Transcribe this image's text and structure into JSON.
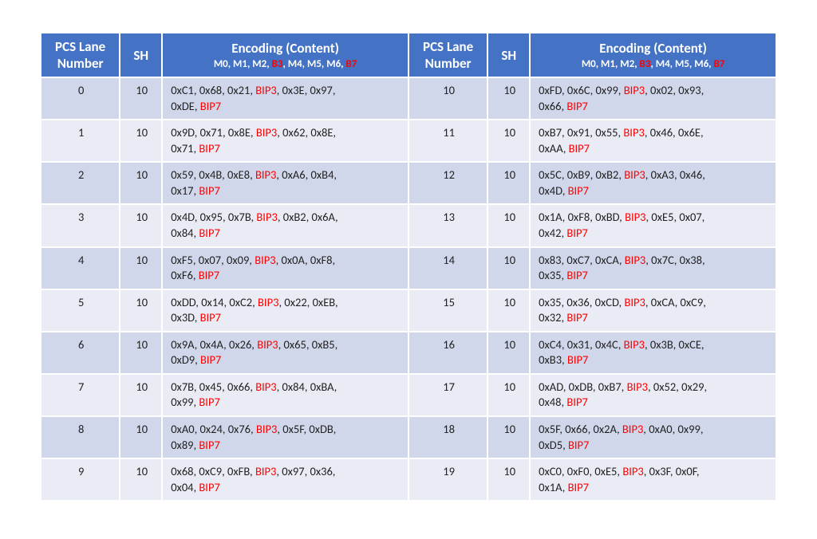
{
  "colors": {
    "header_bg": "#4472c4",
    "header_fg": "#ffffff",
    "row_even_bg": "#d0d7ea",
    "row_odd_bg": "#e9ecf5",
    "accent_red": "#ff0000",
    "border": "#ffffff",
    "text": "#222222"
  },
  "typography": {
    "header_fontsize_pt": 13,
    "subheader_fontsize_pt": 10,
    "cell_fontsize_pt": 11,
    "font_family": "Calibri"
  },
  "headers": {
    "lane": "PCS Lane Number",
    "sh": "SH",
    "encoding_title": "Encoding (Content)",
    "encoding_sub_parts": [
      "M0, M1, M2, ",
      "B3",
      ", M4, M5, M6, ",
      "B7"
    ],
    "encoding_sub_red_idx": [
      1,
      3
    ]
  },
  "encoding_template": {
    "red_indices": [
      3,
      7
    ],
    "labels_at_red": {
      "3": "BIP3",
      "7": "BIP7"
    }
  },
  "rows": [
    {
      "left": {
        "lane": "0",
        "sh": "10",
        "m": [
          "0xC1",
          "0x68",
          "0x21",
          "BIP3",
          "0x3E",
          "0x97",
          "0xDE",
          "BIP7"
        ]
      },
      "right": {
        "lane": "10",
        "sh": "10",
        "m": [
          "0xFD",
          "0x6C",
          "0x99",
          "BIP3",
          "0x02",
          "0x93",
          "0x66",
          "BIP7"
        ]
      }
    },
    {
      "left": {
        "lane": "1",
        "sh": "10",
        "m": [
          "0x9D",
          "0x71",
          "0x8E",
          "BIP3",
          "0x62",
          "0x8E",
          "0x71",
          "BIP7"
        ]
      },
      "right": {
        "lane": "11",
        "sh": "10",
        "m": [
          "0xB7",
          "0x91",
          "0x55",
          "BIP3",
          "0x46",
          "0x6E",
          "0xAA",
          "BIP7"
        ]
      }
    },
    {
      "left": {
        "lane": "2",
        "sh": "10",
        "m": [
          "0x59",
          "0x4B",
          "0xE8",
          "BIP3",
          "0xA6",
          "0xB4",
          "0x17",
          "BIP7"
        ]
      },
      "right": {
        "lane": "12",
        "sh": "10",
        "m": [
          "0x5C",
          "0xB9",
          "0xB2",
          "BIP3",
          "0xA3",
          "0x46",
          "0x4D",
          "BIP7"
        ]
      }
    },
    {
      "left": {
        "lane": "3",
        "sh": "10",
        "m": [
          "0x4D",
          "0x95",
          "0x7B",
          "BIP3",
          "0xB2",
          "0x6A",
          "0x84",
          "BIP7"
        ]
      },
      "right": {
        "lane": "13",
        "sh": "10",
        "m": [
          "0x1A",
          "0xF8",
          "0xBD",
          "BIP3",
          "0xE5",
          "0x07",
          "0x42",
          "BIP7"
        ]
      }
    },
    {
      "left": {
        "lane": "4",
        "sh": "10",
        "m": [
          "0xF5",
          "0x07",
          "0x09",
          "BIP3",
          "0x0A",
          "0xF8",
          "0xF6",
          "BIP7"
        ]
      },
      "right": {
        "lane": "14",
        "sh": "10",
        "m": [
          "0x83",
          "0xC7",
          "0xCA",
          "BIP3",
          "0x7C",
          "0x38",
          "0x35",
          "BIP7"
        ]
      }
    },
    {
      "left": {
        "lane": "5",
        "sh": "10",
        "m": [
          "0xDD",
          "0x14",
          "0xC2",
          "BIP3",
          "0x22",
          "0xEB",
          "0x3D",
          "BIP7"
        ]
      },
      "right": {
        "lane": "15",
        "sh": "10",
        "m": [
          "0x35",
          "0x36",
          "0xCD",
          "BIP3",
          "0xCA",
          "0xC9",
          "0x32",
          "BIP7"
        ]
      }
    },
    {
      "left": {
        "lane": "6",
        "sh": "10",
        "m": [
          "0x9A",
          "0x4A",
          "0x26",
          "BIP3",
          "0x65",
          "0xB5",
          "0xD9",
          "BIP7"
        ]
      },
      "right": {
        "lane": "16",
        "sh": "10",
        "m": [
          "0xC4",
          "0x31",
          "0x4C",
          "BIP3",
          "0x3B",
          "0xCE",
          "0xB3",
          "BIP7"
        ]
      }
    },
    {
      "left": {
        "lane": "7",
        "sh": "10",
        "m": [
          "0x7B",
          "0x45",
          "0x66",
          "BIP3",
          "0x84",
          "0xBA",
          "0x99",
          "BIP7"
        ]
      },
      "right": {
        "lane": "17",
        "sh": "10",
        "m": [
          "0xAD",
          "0xDB",
          "0xB7",
          "BIP3",
          "0x52",
          "0x29",
          "0x48",
          "BIP7"
        ]
      }
    },
    {
      "left": {
        "lane": "8",
        "sh": "10",
        "m": [
          "0xA0",
          "0x24",
          "0x76",
          "BIP3",
          "0x5F",
          "0xDB",
          "0x89",
          "BIP7"
        ]
      },
      "right": {
        "lane": "18",
        "sh": "10",
        "m": [
          "0x5F",
          "0x66",
          "0x2A",
          "BIP3",
          "0xA0",
          "0x99",
          "0xD5",
          "BIP7"
        ]
      }
    },
    {
      "left": {
        "lane": "9",
        "sh": "10",
        "m": [
          "0x68",
          "0xC9",
          "0xFB",
          "BIP3",
          "0x97",
          "0x36",
          "0x04",
          "BIP7"
        ]
      },
      "right": {
        "lane": "19",
        "sh": "10",
        "m": [
          "0xC0",
          "0xF0",
          "0xE5",
          "BIP3",
          "0x3F",
          "0x0F",
          "0x1A",
          "BIP7"
        ]
      }
    }
  ]
}
